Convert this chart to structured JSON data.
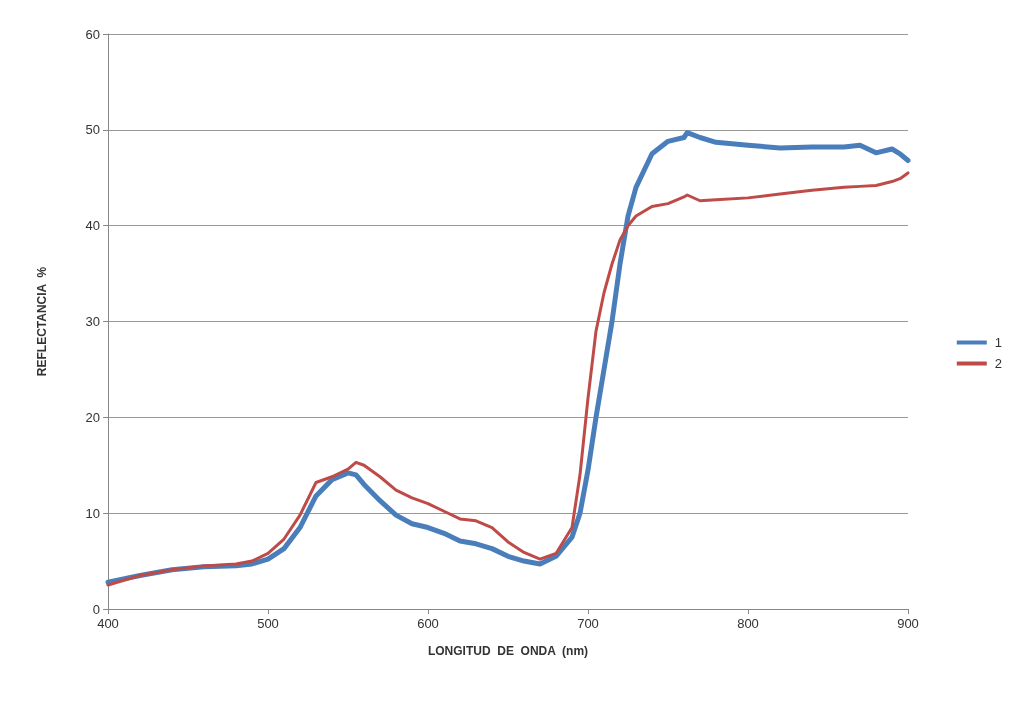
{
  "chart_data": {
    "type": "line",
    "xlabel": "LONGITUD  DE  ONDA  (nm)",
    "ylabel": "REFLECTANCIA  %",
    "x": [
      400,
      420,
      440,
      460,
      480,
      490,
      500,
      510,
      520,
      530,
      540,
      550,
      555,
      560,
      570,
      580,
      590,
      600,
      610,
      620,
      630,
      640,
      650,
      660,
      670,
      680,
      690,
      695,
      700,
      705,
      710,
      715,
      720,
      725,
      730,
      740,
      750,
      760,
      762,
      770,
      780,
      800,
      820,
      840,
      860,
      870,
      880,
      890,
      895,
      900
    ],
    "series": [
      {
        "name": "1",
        "color": "#4a7ebb",
        "values": [
          2.8,
          3.5,
          4.1,
          4.4,
          4.5,
          4.7,
          5.2,
          6.3,
          8.5,
          11.8,
          13.5,
          14.2,
          14.0,
          13.0,
          11.3,
          9.8,
          8.9,
          8.5,
          7.9,
          7.1,
          6.8,
          6.3,
          5.5,
          5.0,
          4.7,
          5.5,
          7.5,
          10,
          14.5,
          20,
          25,
          30,
          36,
          41,
          44,
          47.5,
          48.8,
          49.2,
          49.7,
          49.2,
          48.7,
          48.4,
          48.1,
          48.2,
          48.2,
          48.4,
          47.6,
          48.0,
          47.5,
          46.8
        ]
      },
      {
        "name": "2",
        "color": "#be4b48",
        "values": [
          2.5,
          3.5,
          4.1,
          4.5,
          4.7,
          5.0,
          5.8,
          7.3,
          9.8,
          13.2,
          13.8,
          14.6,
          15.3,
          15.0,
          13.8,
          12.4,
          11.6,
          11.0,
          10.2,
          9.4,
          9.2,
          8.5,
          7.0,
          5.9,
          5.2,
          5.8,
          8.5,
          14,
          22,
          29,
          33,
          36,
          38.5,
          40,
          41,
          42,
          42.3,
          43.0,
          43.2,
          42.6,
          42.7,
          42.9,
          43.3,
          43.7,
          44.0,
          44.1,
          44.2,
          44.6,
          44.9,
          45.5
        ]
      }
    ],
    "xlim": [
      400,
      900
    ],
    "xticks": [
      400,
      500,
      600,
      700,
      800,
      900
    ],
    "ylim": [
      0,
      60
    ],
    "yticks": [
      0,
      10,
      20,
      30,
      40,
      50,
      60
    ],
    "grid": "y",
    "legend": "right",
    "marker": "none",
    "line_style": "solid"
  }
}
